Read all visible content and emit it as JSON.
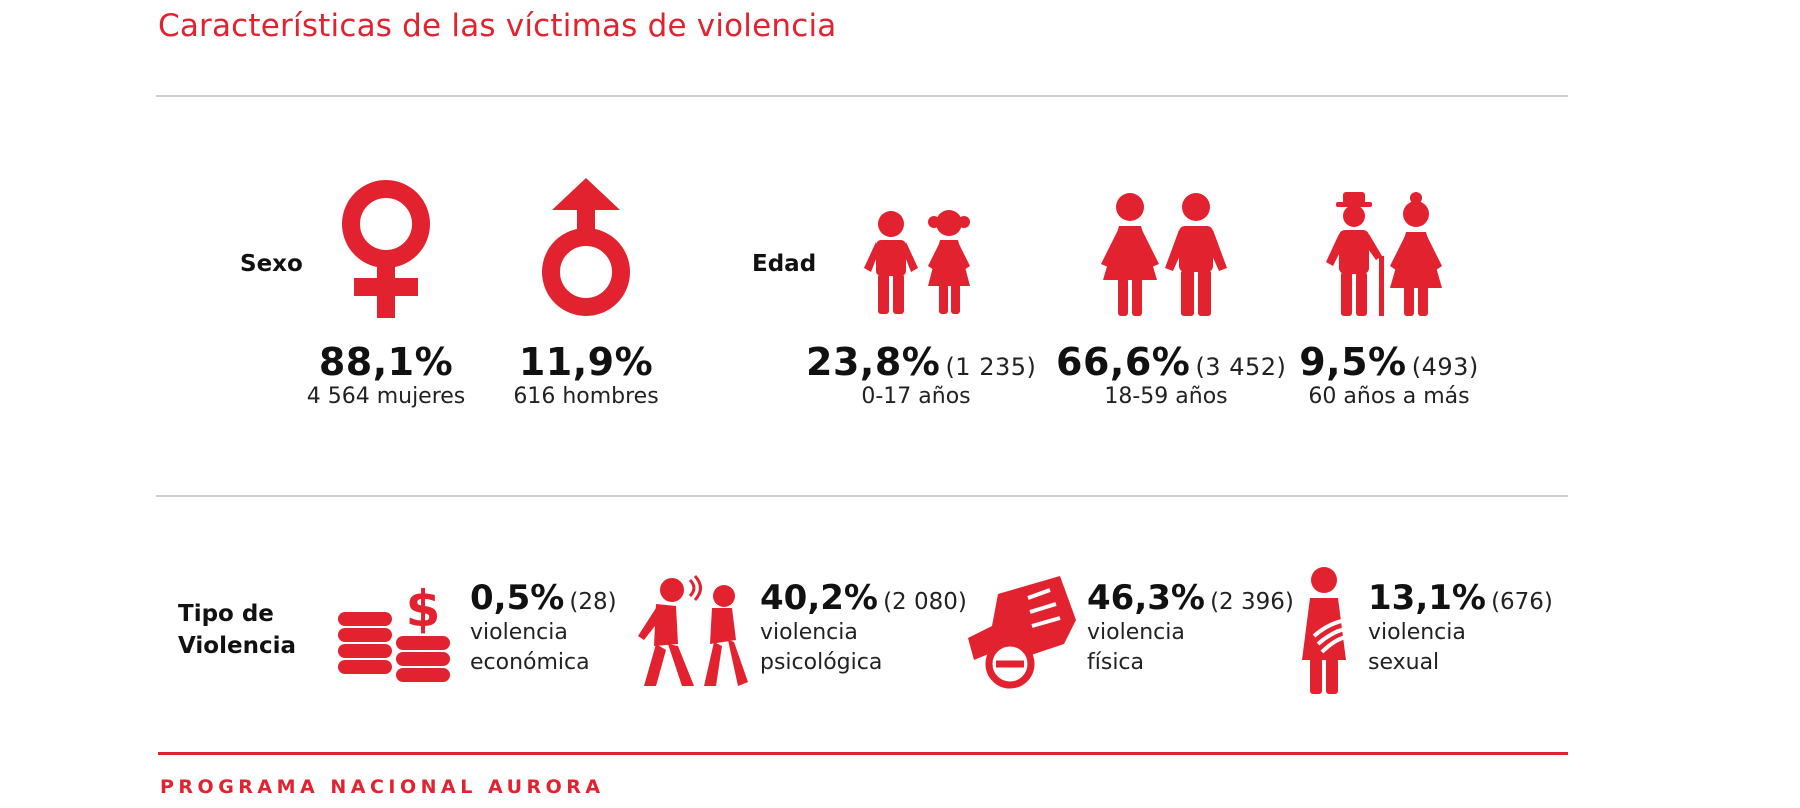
{
  "title": "Características de las víctimas de violencia",
  "footer": "PROGRAMA NACIONAL AURORA",
  "brand_color": "#e2222f",
  "sexo": {
    "label": "Sexo",
    "items": [
      {
        "icon": "female-symbol-icon",
        "percent": "88,1%",
        "detail": "4 564 mujeres"
      },
      {
        "icon": "male-symbol-icon",
        "percent": "11,9%",
        "detail": "616 hombres"
      }
    ]
  },
  "edad": {
    "label": "Edad",
    "items": [
      {
        "icon": "children-icon",
        "percent": "23,8%",
        "count": "(1 235)",
        "range": "0-17 años"
      },
      {
        "icon": "adults-icon",
        "percent": "66,6%",
        "count": "(3 452)",
        "range": "18-59 años"
      },
      {
        "icon": "elderly-icon",
        "percent": "9,5%",
        "count": "(493)",
        "range": "60 años a más"
      }
    ]
  },
  "tipo": {
    "label_line1": "Tipo de",
    "label_line2": "Violencia",
    "items": [
      {
        "icon": "coins-dollar-icon",
        "percent": "0,5%",
        "count": "(28)",
        "line1": "violencia",
        "line2": "económica"
      },
      {
        "icon": "yelling-people-icon",
        "percent": "40,2%",
        "count": "(2 080)",
        "line1": "violencia",
        "line2": "psicológica"
      },
      {
        "icon": "fist-prohibited-icon",
        "percent": "46,3%",
        "count": "(2 396)",
        "line1": "violencia",
        "line2": "física"
      },
      {
        "icon": "harassment-icon",
        "percent": "13,1%",
        "count": "(676)",
        "line1": "violencia",
        "line2": "sexual"
      }
    ]
  }
}
